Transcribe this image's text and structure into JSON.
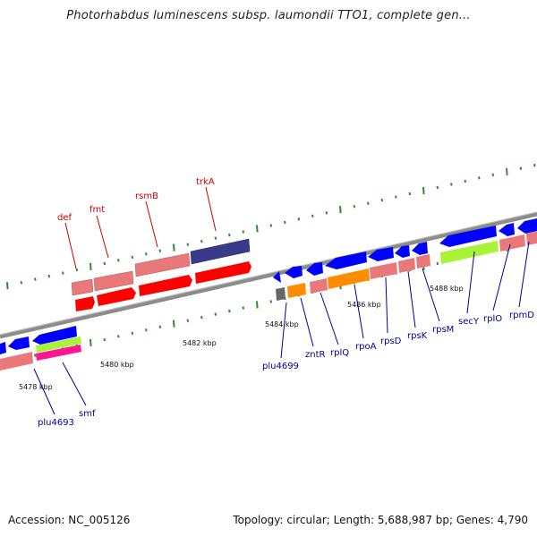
{
  "title": "Photorhabdus luminescens subsp. laumondii TTO1, complete gen...",
  "footer": {
    "accession": "Accession: NC_005126",
    "summary": "Topology: circular; Length: 5,688,987 bp; Genes: 4,790"
  },
  "ticks": [
    "5478 kbp",
    "5480 kbp",
    "5482 kbp",
    "5484 kbp",
    "5486 kbp",
    "5488 kbp"
  ],
  "genes_top": [
    "def",
    "fmt",
    "rsmB",
    "trkA"
  ],
  "genes_bottom": [
    "plu4693",
    "smf",
    "plu4699",
    "zntR",
    "rplQ",
    "rpoA",
    "rpsD",
    "rpsK",
    "rpsM",
    "secY",
    "rplO",
    "rpmD"
  ],
  "colors": {
    "top_label": "#cc0000",
    "bottom_label": "#000099",
    "backbone": "#8c8c8c",
    "cds_red": "#ff0000",
    "cds_pink": "#e8787a",
    "cds_navy": "#3a3a8a",
    "cds_blue": "#0000ff",
    "cds_orange": "#ff8c00",
    "cds_lime": "#a8f23a",
    "cds_magenta": "#ff1493",
    "cds_grey": "#666666",
    "tick_dot": "#2e8b2e"
  }
}
